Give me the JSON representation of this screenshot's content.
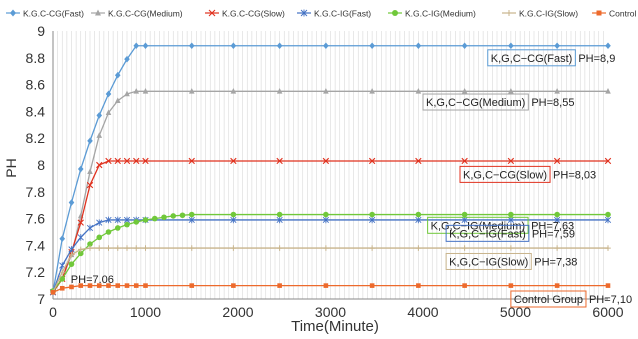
{
  "chart_data": {
    "type": "line",
    "title": "",
    "xlabel": "Time(Minute)",
    "ylabel": "PH",
    "xlim": [
      0,
      6000
    ],
    "ylim": [
      7,
      9
    ],
    "xticks": [
      0,
      1000,
      2000,
      3000,
      4000,
      5000,
      6000
    ],
    "yticks": [
      7,
      7.2,
      7.4,
      7.6,
      7.8,
      8,
      8.2,
      8.4,
      8.6,
      8.8,
      9
    ],
    "grid": "vertical",
    "legend_position": "top",
    "series": [
      {
        "name": "K.G.C-CG(Fast)",
        "color": "#5b9bd5",
        "marker": "diamond",
        "x": [
          0,
          100,
          200,
          300,
          400,
          500,
          600,
          700,
          800,
          900,
          1000,
          1500,
          1950,
          2450,
          2950,
          3450,
          3950,
          4450,
          4950,
          5450,
          6000
        ],
        "y": [
          7.05,
          7.45,
          7.72,
          7.97,
          8.18,
          8.37,
          8.53,
          8.67,
          8.79,
          8.89,
          8.89,
          8.89,
          8.89,
          8.89,
          8.89,
          8.89,
          8.89,
          8.89,
          8.89,
          8.89,
          8.89
        ]
      },
      {
        "name": "K.G.C-CG(Medium)",
        "color": "#a5a5a5",
        "marker": "triangle",
        "x": [
          0,
          100,
          200,
          300,
          400,
          500,
          600,
          700,
          800,
          900,
          1000,
          1500,
          1950,
          2450,
          2950,
          3450,
          3950,
          4450,
          4950,
          5450,
          6000
        ],
        "y": [
          7.05,
          7.15,
          7.33,
          7.62,
          7.95,
          8.22,
          8.39,
          8.48,
          8.53,
          8.55,
          8.55,
          8.55,
          8.55,
          8.55,
          8.55,
          8.55,
          8.55,
          8.55,
          8.55,
          8.55,
          8.55
        ]
      },
      {
        "name": "K.G.C-CG(Slow)",
        "color": "#e0321f",
        "marker": "x",
        "x": [
          0,
          100,
          200,
          300,
          400,
          500,
          600,
          700,
          800,
          900,
          1000,
          1500,
          1950,
          2450,
          2950,
          3450,
          3950,
          4450,
          4950,
          5450,
          6000
        ],
        "y": [
          7.05,
          7.15,
          7.35,
          7.57,
          7.85,
          8.0,
          8.03,
          8.03,
          8.03,
          8.03,
          8.03,
          8.03,
          8.03,
          8.03,
          8.03,
          8.03,
          8.03,
          8.03,
          8.03,
          8.03,
          8.03
        ]
      },
      {
        "name": "K.G.C-IG(Fast)",
        "color": "#4472c4",
        "marker": "star",
        "x": [
          0,
          100,
          200,
          300,
          400,
          500,
          600,
          700,
          800,
          900,
          1000,
          1500,
          1950,
          2450,
          2950,
          3450,
          3950,
          4450,
          4950,
          5450,
          6000
        ],
        "y": [
          7.05,
          7.25,
          7.37,
          7.46,
          7.53,
          7.57,
          7.59,
          7.59,
          7.59,
          7.59,
          7.59,
          7.59,
          7.59,
          7.59,
          7.59,
          7.59,
          7.59,
          7.59,
          7.59,
          7.59,
          7.59
        ]
      },
      {
        "name": "K.G.C-IG(Medium)",
        "color": "#70c83a",
        "marker": "circle",
        "x": [
          0,
          100,
          200,
          300,
          400,
          500,
          600,
          700,
          800,
          900,
          1000,
          1100,
          1200,
          1300,
          1400,
          1500,
          1950,
          2450,
          2950,
          3450,
          3950,
          4450,
          4950,
          5450,
          6000
        ],
        "y": [
          7.06,
          7.15,
          7.26,
          7.34,
          7.41,
          7.46,
          7.5,
          7.53,
          7.555,
          7.575,
          7.59,
          7.6,
          7.61,
          7.62,
          7.625,
          7.63,
          7.63,
          7.63,
          7.63,
          7.63,
          7.63,
          7.63,
          7.63,
          7.63,
          7.63
        ]
      },
      {
        "name": "K.G.C-IG(Slow)",
        "color": "#c8b48c",
        "marker": "plus",
        "x": [
          0,
          100,
          200,
          300,
          400,
          500,
          600,
          700,
          800,
          900,
          1000,
          1500,
          1950,
          2450,
          2950,
          3450,
          3950,
          4450,
          4950,
          5450,
          6000
        ],
        "y": [
          7.05,
          7.2,
          7.33,
          7.37,
          7.38,
          7.38,
          7.38,
          7.38,
          7.38,
          7.38,
          7.38,
          7.38,
          7.38,
          7.38,
          7.38,
          7.38,
          7.38,
          7.38,
          7.38,
          7.38,
          7.38
        ]
      },
      {
        "name": "Control Group",
        "color": "#ed6a2c",
        "marker": "square",
        "x": [
          0,
          100,
          200,
          300,
          400,
          500,
          600,
          700,
          800,
          900,
          1000,
          1500,
          1950,
          2450,
          2950,
          3450,
          3950,
          4450,
          4950,
          5450,
          6000
        ],
        "y": [
          7.05,
          7.08,
          7.09,
          7.1,
          7.1,
          7.1,
          7.1,
          7.1,
          7.1,
          7.1,
          7.1,
          7.1,
          7.1,
          7.1,
          7.1,
          7.1,
          7.1,
          7.1,
          7.1,
          7.1,
          7.1
        ]
      }
    ],
    "annotations": [
      {
        "name": "K,G,C−CG(Fast)",
        "value": "PH=8,9",
        "box_color": "#5b9bd5",
        "anchor_x": 4700,
        "anchor_y": 8.8
      },
      {
        "name": "K,G,C−CG(Medium)",
        "value": "PH=8,55",
        "box_color": "#a5a5a5",
        "anchor_x": 4000,
        "anchor_y": 8.47
      },
      {
        "name": "K,G,C−CG(Slow)",
        "value": "PH=8,03",
        "box_color": "#e0321f",
        "anchor_x": 4400,
        "anchor_y": 7.93
      },
      {
        "name": "K,G,C−IG(Medium)",
        "value": "PH=7,63",
        "box_color": "#70c83a",
        "anchor_x": 4050,
        "anchor_y": 7.55
      },
      {
        "name": "K,G,C−IG(Fast)",
        "value": "PH=7,59",
        "box_color": "#4472c4",
        "anchor_x": 4250,
        "anchor_y": 7.49
      },
      {
        "name": "K,G,C−IG(Slow)",
        "value": "PH=7,38",
        "box_color": "#c8b48c",
        "anchor_x": 4250,
        "anchor_y": 7.28
      },
      {
        "name": "Control Group",
        "value": "PH=7,10",
        "box_color": "#ed6a2c",
        "anchor_x": 4950,
        "anchor_y": 7.0
      },
      {
        "name": "",
        "value": "PH=7.06",
        "box_color": "",
        "anchor_x": 160,
        "anchor_y": 7.15
      }
    ]
  }
}
